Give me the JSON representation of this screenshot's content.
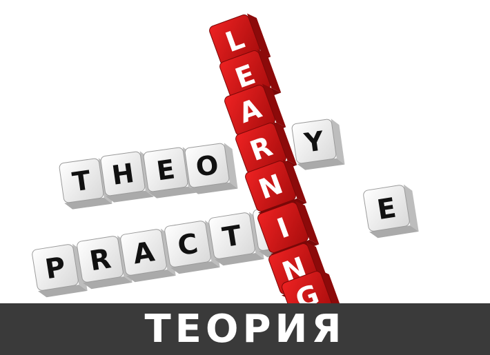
{
  "crossword": {
    "vertical_word": "LEARNING",
    "horizontal_words": [
      "THEORY",
      "PRACTICE"
    ]
  },
  "caption": {
    "text": "ТЕОРИЯ"
  },
  "colors": {
    "red_cube": "#cc1111",
    "white_cube": "#f2f2f2",
    "caption_bar": "#3a3a3a",
    "caption_text": "#ffffff"
  }
}
